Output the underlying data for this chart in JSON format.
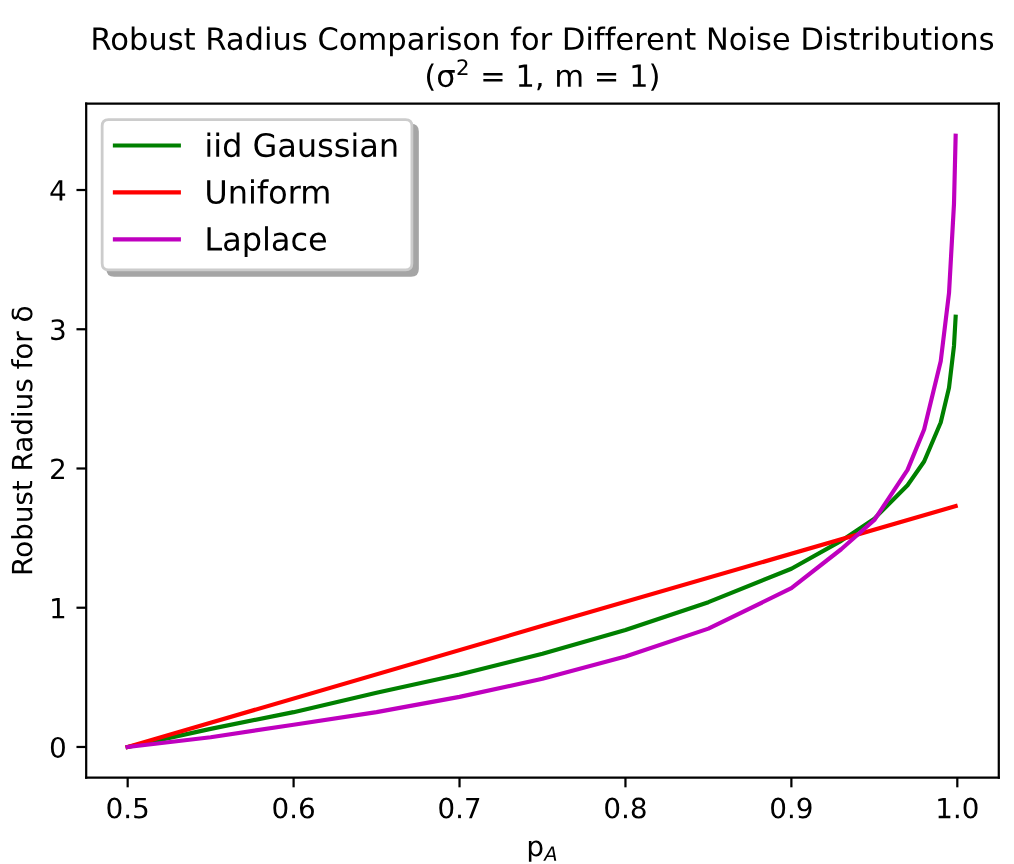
{
  "chart_data": {
    "type": "line",
    "title": "Robust Radius Comparison for Different Noise Distributions\n(σ$^{2}$ = 1, m = 1)",
    "xlabel": "p$_{A}$",
    "ylabel": "Robust Radius for δ",
    "xlim": [
      0.475,
      1.025
    ],
    "ylim": [
      -0.22,
      4.62
    ],
    "xticks": [
      0.5,
      0.6,
      0.7,
      0.8,
      0.9,
      {
        "value": 1.0,
        "label": "1.0"
      }
    ],
    "yticks": [
      0,
      1,
      2,
      3,
      4
    ],
    "grid": false,
    "legend": "top left",
    "marker": "none",
    "line_style": "solid",
    "series": [
      {
        "name": "iid Gaussian",
        "color": "#008000",
        "x": [
          0.5,
          0.55,
          0.6,
          0.65,
          0.7,
          0.75,
          0.8,
          0.85,
          0.9,
          0.93,
          0.95,
          0.97,
          0.98,
          0.99,
          0.995,
          0.998,
          0.999
        ],
        "values": [
          0,
          0.13,
          0.25,
          0.39,
          0.52,
          0.67,
          0.84,
          1.04,
          1.28,
          1.48,
          1.64,
          1.88,
          2.05,
          2.33,
          2.58,
          2.88,
          3.09
        ]
      },
      {
        "name": "Uniform",
        "color": "#ff0000",
        "x": [
          0.5,
          0.75,
          0.999
        ],
        "values": [
          0,
          0.87,
          1.73
        ]
      },
      {
        "name": "Laplace",
        "color": "#bf00bf",
        "x": [
          0.5,
          0.55,
          0.6,
          0.65,
          0.7,
          0.75,
          0.8,
          0.85,
          0.9,
          0.93,
          0.95,
          0.97,
          0.98,
          0.99,
          0.995,
          0.998,
          0.999
        ],
        "values": [
          0,
          0.07,
          0.16,
          0.25,
          0.36,
          0.49,
          0.65,
          0.85,
          1.14,
          1.42,
          1.63,
          1.99,
          2.28,
          2.77,
          3.26,
          3.9,
          4.39
        ]
      }
    ]
  }
}
